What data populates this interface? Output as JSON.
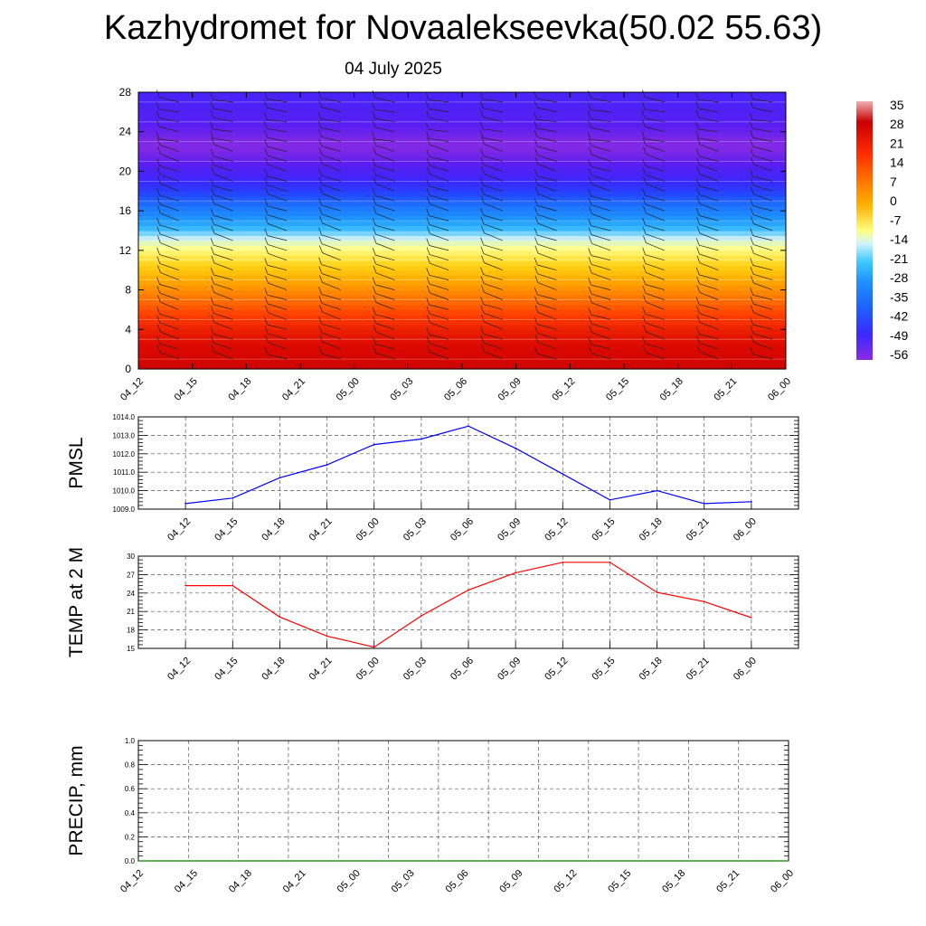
{
  "title": "Kazhydromet for Novaalekseevka(50.02 55.63)",
  "subtitle": "04 July 2025",
  "chart_data": [
    {
      "type": "heatmap",
      "title": "Kazhydromet for Novaalekseevka(50.02 55.63)",
      "subtitle": "04 July 2025",
      "x_ticks": [
        "04_12",
        "04_15",
        "04_18",
        "04_21",
        "05_00",
        "05_03",
        "05_06",
        "05_09",
        "05_12",
        "05_15",
        "05_18",
        "05_21",
        "06_00"
      ],
      "y_ticks": [
        0,
        4,
        8,
        12,
        16,
        20,
        24,
        28
      ],
      "ylim": [
        0,
        28
      ],
      "colorbar_labels": [
        35,
        28,
        21,
        14,
        7,
        0,
        -7,
        -14,
        -21,
        -28,
        -35,
        -42,
        -49,
        -56
      ],
      "colorbar_range": [
        -63,
        38
      ],
      "temperature_profile": {
        "levels": [
          0,
          1,
          2,
          3,
          4,
          5,
          6,
          7,
          8,
          9,
          10,
          11,
          12,
          13,
          14,
          15,
          16,
          17,
          18,
          19,
          20,
          21,
          22,
          23,
          24,
          25,
          26,
          27,
          28
        ],
        "values": [
          33,
          31,
          29,
          27,
          25,
          22,
          19,
          15,
          11,
          7,
          2,
          -2,
          -6,
          -11,
          -20,
          -27,
          -33,
          -39,
          -45,
          -49,
          -53,
          -57,
          -61,
          -62,
          -58,
          -55,
          -54,
          -53,
          -52
        ]
      },
      "wind_barbs": true,
      "colors": {
        "hot": "#c60000",
        "warm": "#ff7a00",
        "neutral": "#ffff7f",
        "cold": "#1e90ff",
        "coldest": "#7a20e6"
      }
    },
    {
      "type": "line",
      "ylabel": "PMSL",
      "x": [
        "04_12",
        "04_15",
        "04_18",
        "04_21",
        "05_00",
        "05_03",
        "05_06",
        "05_09",
        "05_12",
        "05_15",
        "05_18",
        "05_21",
        "06_00"
      ],
      "y_ticks": [
        "1009.0",
        "1010.0",
        "1011.0",
        "1012.0",
        "1013.0",
        "1014.0"
      ],
      "ylim": [
        1009,
        1014
      ],
      "series": [
        {
          "values": [
            1009.3,
            1009.6,
            1010.7,
            1011.4,
            1012.5,
            1012.8,
            1013.5,
            1012.3,
            1010.9,
            1009.5,
            1010.0,
            1009.3,
            1009.4
          ],
          "color": "#0000ff"
        }
      ],
      "grid": true
    },
    {
      "type": "line",
      "ylabel": "TEMP at 2 M",
      "x": [
        "04_12",
        "04_15",
        "04_18",
        "04_21",
        "05_00",
        "05_03",
        "05_06",
        "05_09",
        "05_12",
        "05_15",
        "05_18",
        "05_21",
        "06_00"
      ],
      "y_ticks": [
        "15",
        "18",
        "21",
        "24",
        "27",
        "30"
      ],
      "ylim": [
        15,
        30
      ],
      "series": [
        {
          "values": [
            25.2,
            25.2,
            20.1,
            17.0,
            15.2,
            20.3,
            24.5,
            27.3,
            29.0,
            29.0,
            24.1,
            22.6,
            20.0
          ],
          "color": "#ff0000"
        }
      ],
      "grid": true
    },
    {
      "type": "line",
      "ylabel": "PRECIP, mm",
      "x": [
        "04_12",
        "04_15",
        "04_18",
        "04_21",
        "05_00",
        "05_03",
        "05_06",
        "05_09",
        "05_12",
        "05_15",
        "05_18",
        "05_21",
        "06_00"
      ],
      "y_ticks": [
        "0.0",
        "0.2",
        "0.4",
        "0.6",
        "0.8",
        "1.0"
      ],
      "ylim": [
        0,
        1
      ],
      "series": [
        {
          "values": [
            0,
            0,
            0,
            0,
            0,
            0,
            0,
            0,
            0,
            0,
            0,
            0,
            0
          ],
          "color": "#008000"
        }
      ],
      "grid": true
    }
  ]
}
